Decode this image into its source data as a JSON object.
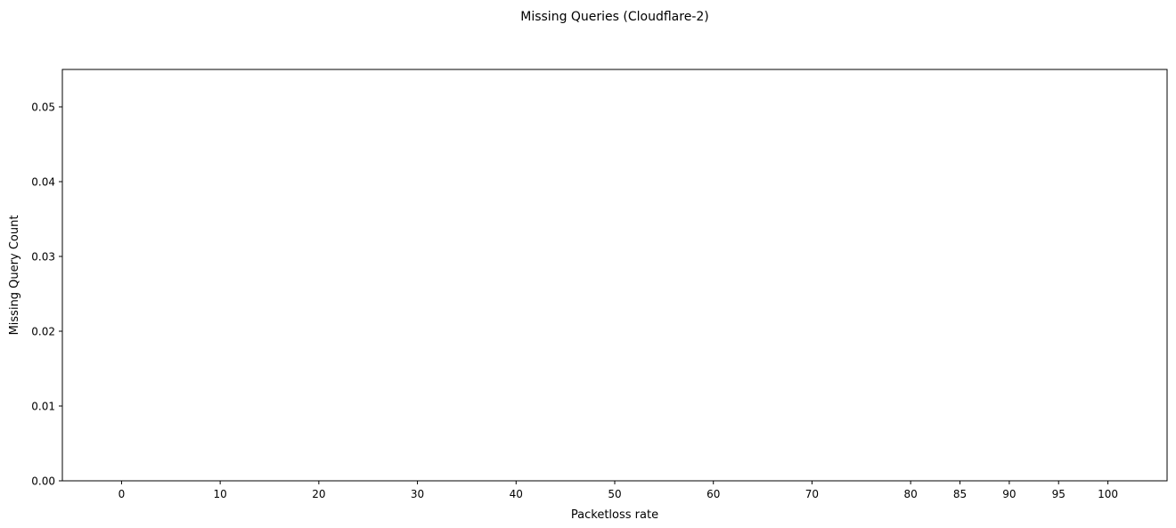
{
  "chart_data": {
    "type": "bar",
    "title": "Missing Queries (Cloudflare-2)",
    "xlabel": "Packetloss rate",
    "ylabel": "Missing Query Count",
    "x_ticks": [
      "0",
      "10",
      "20",
      "30",
      "40",
      "50",
      "60",
      "70",
      "80",
      "85",
      "90",
      "95",
      "100"
    ],
    "x_values": [
      0,
      10,
      20,
      30,
      40,
      50,
      60,
      70,
      80,
      85,
      90,
      95,
      100
    ],
    "y_ticks": [
      "0.00",
      "0.01",
      "0.02",
      "0.03",
      "0.04",
      "0.05"
    ],
    "y_tick_values": [
      0,
      0.01,
      0.02,
      0.03,
      0.04,
      0.05
    ],
    "ylim": [
      0,
      0.055
    ],
    "xlim": [
      -6,
      106
    ],
    "series": [
      {
        "values": [
          0,
          0,
          0,
          0,
          0,
          0,
          0,
          0,
          0,
          0,
          0,
          0,
          0
        ]
      }
    ],
    "grid": false,
    "legend": "none"
  }
}
